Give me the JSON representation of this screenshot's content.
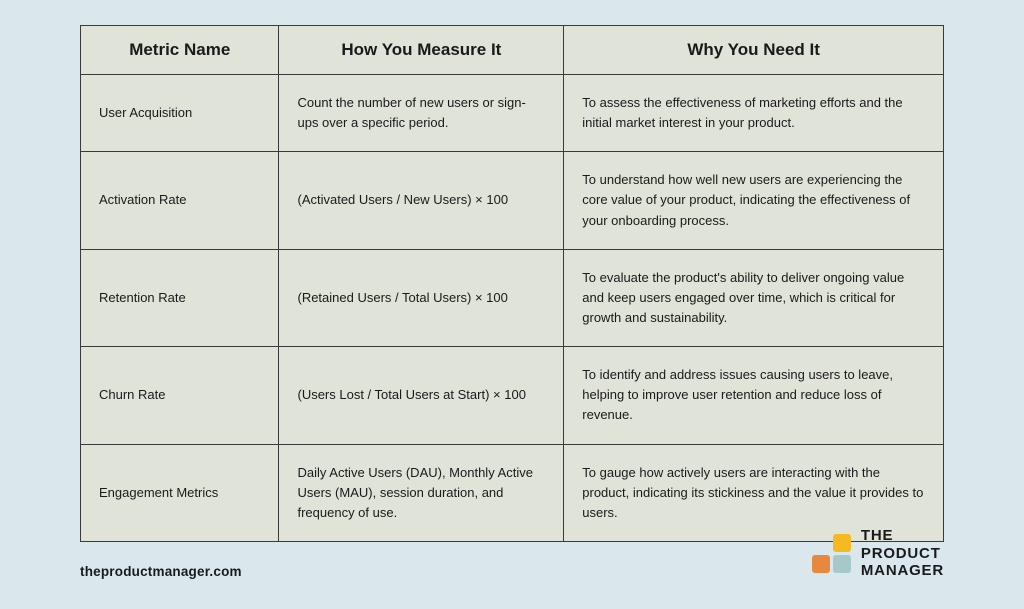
{
  "table": {
    "background_color": "#dae8ee",
    "cell_background": "#e0e3d8",
    "border_color": "#3a3a3a",
    "header_fontsize": 17,
    "body_fontsize": 13,
    "columns": [
      {
        "label": "Metric Name",
        "width_pct": 23
      },
      {
        "label": "How You Measure It",
        "width_pct": 33
      },
      {
        "label": "Why You Need It",
        "width_pct": 44
      }
    ],
    "rows": [
      {
        "metric": "User Acquisition",
        "measure": "Count the number of new users or sign-ups over a specific period.",
        "why": "To assess the effectiveness of marketing efforts and the initial market interest in your product."
      },
      {
        "metric": "Activation Rate",
        "measure": "(Activated Users / New Users) × 100",
        "why": "To understand how well new users are experiencing the core value of your product, indicating the effectiveness of your onboarding process."
      },
      {
        "metric": "Retention Rate",
        "measure": "(Retained Users / Total Users) × 100",
        "why": "To evaluate the product's ability to deliver ongoing value and keep users engaged over time, which is critical for growth and sustainability."
      },
      {
        "metric": "Churn Rate",
        "measure": "(Users Lost / Total Users at Start) × 100",
        "why": "To identify and address issues causing users to leave, helping to improve user retention and reduce loss of revenue."
      },
      {
        "metric": "Engagement Metrics",
        "measure": "Daily Active Users (DAU), Monthly Active Users (MAU), session duration, and frequency of use.",
        "why": "To gauge how actively users are interacting with the product, indicating its stickiness and the value it provides to users."
      }
    ]
  },
  "footer": {
    "url": "theproductmanager.com",
    "logo_line1": "THE",
    "logo_line2": "PRODUCT",
    "logo_line3": "MANAGER",
    "logo_colors": {
      "yellow": "#f5b921",
      "orange": "#e6893e",
      "teal": "#a5c9c9"
    }
  }
}
